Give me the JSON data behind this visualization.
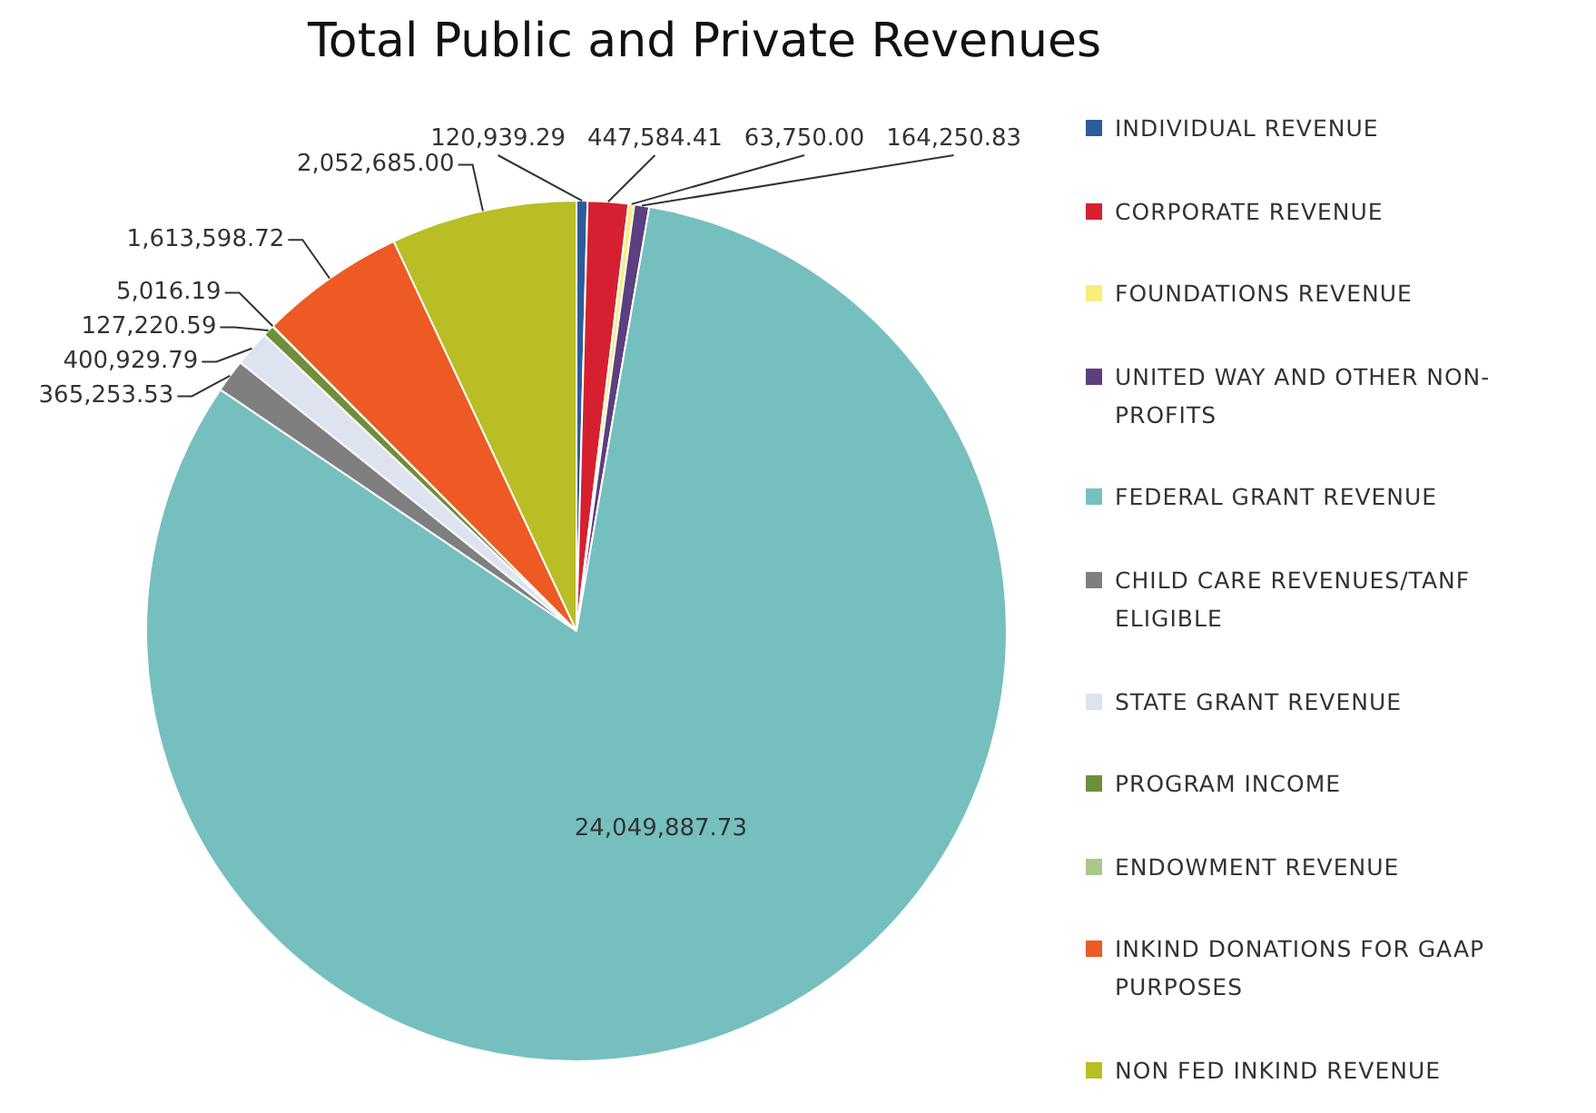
{
  "chart_data": {
    "type": "pie",
    "title": "Total Public and Private Revenues",
    "categories": [
      "INDIVIDUAL REVENUE",
      "CORPORATE REVENUE",
      "FOUNDATIONS REVENUE",
      "UNITED WAY AND OTHER NON-PROFITS",
      "FEDERAL GRANT REVENUE",
      "CHILD CARE REVENUES/TANF ELIGIBLE",
      "STATE GRANT REVENUE",
      "PROGRAM INCOME",
      "ENDOWMENT REVENUE",
      "INKIND DONATIONS FOR GAAP PURPOSES",
      "NON FED INKIND REVENUE"
    ],
    "values": [
      120939.29,
      447584.41,
      63750.0,
      164250.83,
      24049887.73,
      365253.53,
      400929.79,
      127220.59,
      5016.19,
      1613598.72,
      2052685.0
    ],
    "colors": [
      "#2e5c9a",
      "#d62030",
      "#f5f07a",
      "#5b3f7f",
      "#76bfbf",
      "#7f7f7f",
      "#dde3ef",
      "#6e8f3a",
      "#a8c888",
      "#ee5a24",
      "#b8be24"
    ],
    "value_labels": [
      "120,939.29",
      "447,584.41",
      "63,750.00",
      "164,250.83",
      "24,049,887.73",
      "365,253.53",
      "400,929.79",
      "127,220.59",
      "5,016.19",
      "1,613,598.72",
      "2,052,685.00"
    ],
    "legend": "right"
  }
}
